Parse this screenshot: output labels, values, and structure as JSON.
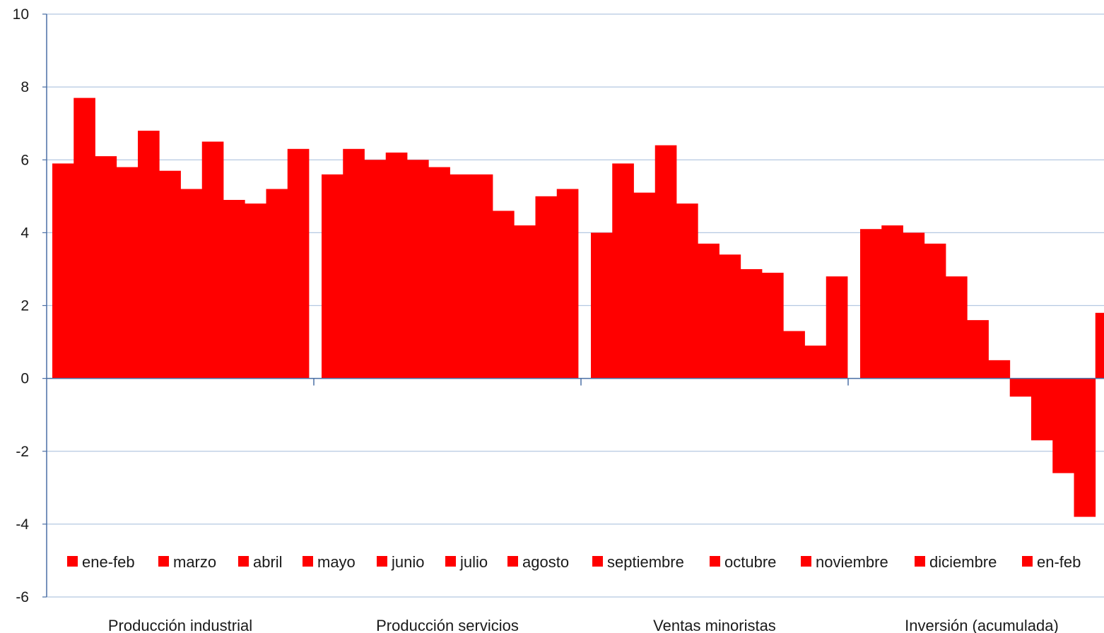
{
  "chart_data": {
    "type": "bar",
    "categories": [
      "Producción industrial",
      "Producción servicios",
      "Ventas minoristas",
      "Inversión (acumulada)"
    ],
    "series": [
      {
        "name": "ene-feb",
        "values": [
          5.9,
          5.6,
          4.0,
          4.1
        ]
      },
      {
        "name": "marzo",
        "values": [
          7.7,
          6.3,
          5.9,
          4.2
        ]
      },
      {
        "name": "abril",
        "values": [
          6.1,
          6.0,
          5.1,
          4.0
        ]
      },
      {
        "name": "mayo",
        "values": [
          5.8,
          6.2,
          6.4,
          3.7
        ]
      },
      {
        "name": "junio",
        "values": [
          6.8,
          6.0,
          4.8,
          2.8
        ]
      },
      {
        "name": "julio",
        "values": [
          5.7,
          5.8,
          3.7,
          1.6
        ]
      },
      {
        "name": "agosto",
        "values": [
          5.2,
          5.6,
          3.4,
          0.5
        ]
      },
      {
        "name": "septiembre",
        "values": [
          6.5,
          5.6,
          3.0,
          -0.5
        ]
      },
      {
        "name": "octubre",
        "values": [
          4.9,
          4.6,
          2.9,
          -1.7
        ]
      },
      {
        "name": "noviembre",
        "values": [
          4.8,
          4.2,
          1.3,
          -2.6
        ]
      },
      {
        "name": "diciembre",
        "values": [
          5.2,
          5.0,
          0.9,
          -3.8
        ]
      },
      {
        "name": "en-feb",
        "values": [
          6.3,
          5.2,
          2.8,
          1.8
        ]
      }
    ],
    "ylim": [
      -6,
      10
    ],
    "yticks": [
      -6,
      -4,
      -2,
      0,
      2,
      4,
      6,
      8,
      10
    ],
    "ytick_labels": [
      "-6",
      "-4",
      "-2",
      "0",
      "2",
      "4",
      "6",
      "8",
      "10"
    ],
    "grid": true,
    "legend_placement": "bottom, inside plot area",
    "colors": {
      "bars": "#ff0000",
      "grid": "#b4c8e1",
      "axis": "#4a6fa5"
    }
  }
}
